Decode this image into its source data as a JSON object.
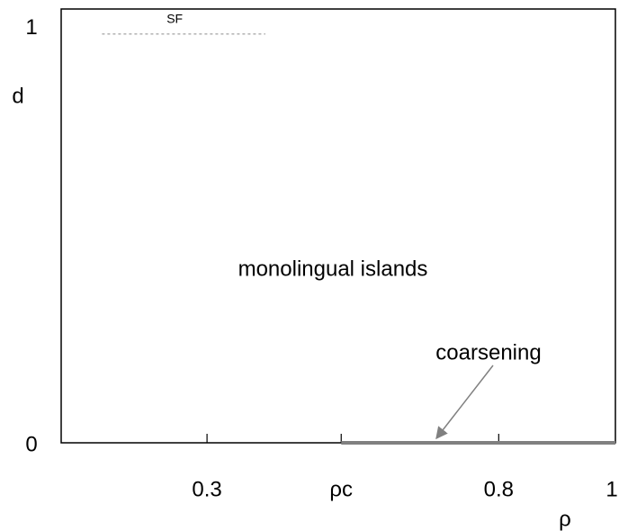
{
  "chart_data": {
    "type": "line",
    "x_label": "ρ",
    "y_label": "d",
    "annotations": [
      "monolingual islands"
    ],
    "series": [
      {
        "name": "SF",
        "color": "#999999",
        "dashed": true,
        "x": [
          0.12,
          0.4
        ],
        "values": [
          0.98,
          0.98
        ]
      },
      {
        "name": "coarsening",
        "color": "#808080",
        "dashed": false,
        "x": [
          0.53,
          1
        ],
        "values": [
          0,
          0
        ]
      }
    ],
    "xlim": [
      0.05,
      1
    ],
    "ylim": [
      0,
      1.04
    ],
    "xticks": [
      0.3,
      {
        "value": 0.53,
        "label": "ρc"
      },
      0.8,
      1
    ],
    "yticks": [
      0,
      1
    ]
  }
}
